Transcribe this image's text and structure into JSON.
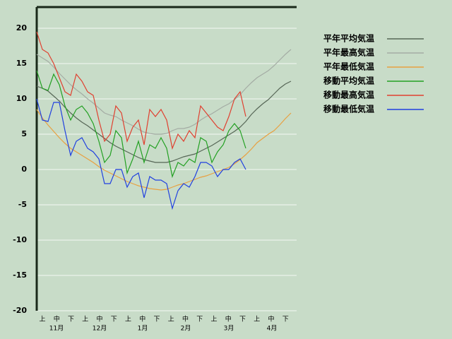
{
  "chart_data": {
    "type": "line",
    "ylim": [
      -20,
      23
    ],
    "yticks": [
      -20,
      -15,
      -10,
      -5,
      0,
      5,
      10,
      15,
      20
    ],
    "grid": true,
    "x_labels": [
      "上",
      "中",
      "下",
      "上",
      "中",
      "下",
      "上",
      "中",
      "下",
      "上",
      "中",
      "下",
      "上",
      "中",
      "下",
      "上",
      "中",
      "下"
    ],
    "months": [
      "11月",
      "12月",
      "1月",
      "2月",
      "3月",
      "4月"
    ],
    "series": [
      {
        "name": "平年平均気温",
        "color": "#566656",
        "values": [
          11.8,
          11.5,
          11.1,
          10.4,
          9.7,
          8.8,
          8.0,
          7.3,
          6.7,
          6.2,
          5.6,
          5.0,
          4.4,
          3.8,
          3.3,
          2.9,
          2.5,
          2.1,
          1.7,
          1.4,
          1.2,
          1.0,
          1.0,
          1.0,
          1.2,
          1.5,
          1.8,
          2.0,
          2.2,
          2.6,
          3.0,
          3.4,
          3.9,
          4.4,
          4.9,
          5.4,
          6.0,
          6.8,
          7.8,
          8.6,
          9.3,
          9.9,
          10.7,
          11.5,
          12.1,
          12.5
        ]
      },
      {
        "name": "平年最高気温",
        "color": "#a4aca4",
        "values": [
          16.3,
          15.8,
          15.3,
          14.5,
          13.6,
          12.8,
          12.0,
          11.3,
          10.7,
          10.0,
          9.4,
          8.7,
          8.0,
          7.7,
          7.5,
          7.0,
          6.6,
          6.2,
          5.7,
          5.3,
          5.1,
          5.0,
          5.0,
          5.1,
          5.5,
          5.8,
          5.8,
          6.0,
          6.4,
          7.0,
          7.5,
          7.9,
          8.4,
          8.9,
          9.3,
          9.9,
          10.6,
          11.5,
          12.3,
          13.0,
          13.5,
          14.0,
          14.7,
          15.5,
          16.3,
          17.0
        ]
      },
      {
        "name": "平年最低気温",
        "color": "#e8a040",
        "values": [
          8.5,
          7.3,
          6.3,
          5.4,
          4.5,
          3.7,
          3.0,
          2.5,
          2.0,
          1.5,
          1.0,
          0.4,
          -0.1,
          -0.5,
          -0.9,
          -1.3,
          -1.7,
          -2.0,
          -2.3,
          -2.5,
          -2.7,
          -2.8,
          -2.9,
          -2.8,
          -2.5,
          -2.2,
          -2.0,
          -1.7,
          -1.4,
          -1.1,
          -0.9,
          -0.6,
          -0.3,
          0.0,
          0.3,
          0.8,
          1.4,
          2.1,
          2.9,
          3.8,
          4.4,
          5.0,
          5.5,
          6.3,
          7.2,
          8.0
        ]
      },
      {
        "name": "移動平均気温",
        "color": "#22a022",
        "values": [
          14,
          11.5,
          11.2,
          13.5,
          12,
          9,
          7,
          8.5,
          9,
          8,
          6.5,
          4,
          1,
          2,
          5.5,
          4.5,
          -0.5,
          1.5,
          4,
          1,
          3.5,
          3,
          4.5,
          3,
          -1,
          1,
          0.5,
          1.5,
          1,
          4.5,
          4,
          1,
          2.5,
          3.5,
          5.5,
          6.5,
          5.5,
          3
        ]
      },
      {
        "name": "移動最高気温",
        "color": "#e04030",
        "values": [
          19.5,
          17,
          16.5,
          15,
          13,
          11,
          10.5,
          13.5,
          12.5,
          11,
          10.5,
          7,
          4,
          5,
          9,
          8,
          4,
          6,
          7,
          3.5,
          8.5,
          7.5,
          8.5,
          7,
          3,
          5,
          4,
          5.5,
          4.5,
          9,
          8,
          7,
          6,
          5.5,
          7.5,
          10,
          11,
          7.5
        ]
      },
      {
        "name": "移動最低気温",
        "color": "#2040e0",
        "values": [
          10,
          7,
          6.8,
          9.5,
          9.5,
          5.5,
          2,
          4,
          4.5,
          3,
          2.5,
          1.5,
          -2,
          -2,
          0,
          0,
          -2.5,
          -1,
          -0.5,
          -4,
          -1,
          -1.5,
          -1.5,
          -2,
          -5.5,
          -3,
          -2,
          -2.5,
          -1,
          1,
          1,
          0.5,
          -1,
          0,
          0,
          1,
          1.5,
          0
        ]
      }
    ]
  }
}
